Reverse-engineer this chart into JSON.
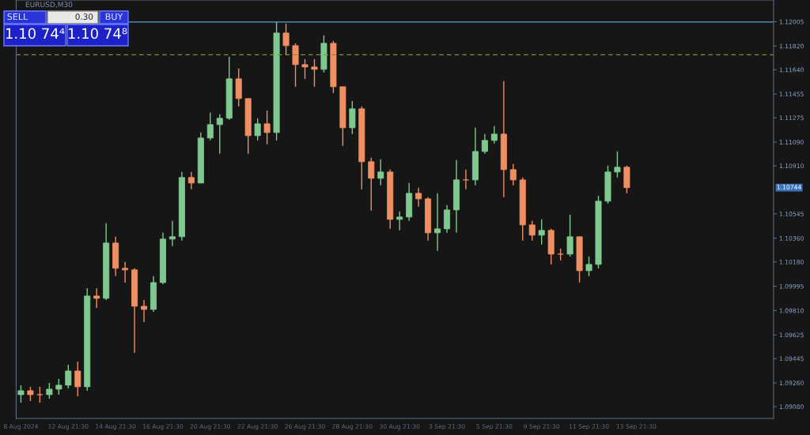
{
  "chart_data": {
    "type": "candlestick",
    "title": "EURUSD,M30",
    "categories": [
      "8 Aug 2024",
      null,
      null,
      null,
      null,
      "12 Aug 21:30",
      null,
      null,
      null,
      null,
      "14 Aug 21:30",
      null,
      null,
      null,
      null,
      "16 Aug 21:30",
      null,
      null,
      null,
      null,
      "20 Aug 21:30",
      null,
      null,
      null,
      null,
      "22 Aug 21:30",
      null,
      null,
      null,
      null,
      "26 Aug 21:30",
      null,
      null,
      null,
      null,
      "28 Aug 21:30",
      null,
      null,
      null,
      null,
      "30 Aug 21:30",
      null,
      null,
      null,
      null,
      "3 Sep 21:30",
      null,
      null,
      null,
      null,
      "5 Sep 21:30",
      null,
      null,
      null,
      null,
      "9 Sep 21:30",
      null,
      null,
      null,
      null,
      "11 Sep 21:30",
      null,
      null,
      null,
      null,
      "13 Sep 21:30",
      null,
      null,
      null,
      null,
      null,
      null,
      null,
      null,
      null,
      null,
      null,
      null,
      null,
      null
    ],
    "ohlc": [
      [
        1.09171,
        1.09243,
        1.09111,
        1.09201
      ],
      [
        1.09201,
        1.09231,
        1.09123,
        1.09171
      ],
      [
        1.09171,
        1.09231,
        1.09111,
        1.09171
      ],
      [
        1.09171,
        1.09261,
        1.09141,
        1.09213
      ],
      [
        1.09213,
        1.09291,
        1.09171,
        1.09243
      ],
      [
        1.09243,
        1.09399,
        1.09219,
        1.09351
      ],
      [
        1.09351,
        1.09423,
        1.09159,
        1.09231
      ],
      [
        1.09231,
        1.09981,
        1.09201,
        1.09921
      ],
      [
        1.09921,
        1.09981,
        1.09831,
        1.09903
      ],
      [
        1.09903,
        1.10473,
        1.09891,
        1.10323
      ],
      [
        1.10323,
        1.10371,
        1.10071,
        1.10131
      ],
      [
        1.10131,
        1.10179,
        1.10023,
        1.10119
      ],
      [
        1.10119,
        1.10131,
        1.09489,
        1.09843
      ],
      [
        1.09843,
        1.09891,
        1.09723,
        1.09819
      ],
      [
        1.09819,
        1.10071,
        1.09801,
        1.10023
      ],
      [
        1.10023,
        1.10401,
        1.10011,
        1.10353
      ],
      [
        1.10353,
        1.10491,
        1.10299,
        1.10371
      ],
      [
        1.10371,
        1.10863,
        1.10341,
        1.10821
      ],
      [
        1.10821,
        1.10863,
        1.10731,
        1.10779
      ],
      [
        1.10779,
        1.11163,
        1.10779,
        1.11121
      ],
      [
        1.11121,
        1.11313,
        1.11103,
        1.11223
      ],
      [
        1.11223,
        1.11301,
        1.11001,
        1.11271
      ],
      [
        1.11271,
        1.11739,
        1.11259,
        1.11571
      ],
      [
        1.11571,
        1.11649,
        1.11361,
        1.11421
      ],
      [
        1.11421,
        1.11421,
        1.11001,
        1.11139
      ],
      [
        1.11139,
        1.11271,
        1.11103,
        1.11229
      ],
      [
        1.11229,
        1.11331,
        1.11073,
        1.11163
      ],
      [
        1.11163,
        1.12003,
        1.11103,
        1.11919
      ],
      [
        1.11919,
        1.11991,
        1.11751,
        1.11823
      ],
      [
        1.11823,
        1.11841,
        1.11511,
        1.11679
      ],
      [
        1.11679,
        1.11721,
        1.11571,
        1.11661
      ],
      [
        1.11661,
        1.11721,
        1.11511,
        1.11643
      ],
      [
        1.11643,
        1.11901,
        1.11619,
        1.11841
      ],
      [
        1.11841,
        1.11859,
        1.11463,
        1.11511
      ],
      [
        1.11511,
        1.11511,
        1.11061,
        1.11199
      ],
      [
        1.11199,
        1.11403,
        1.11151,
        1.11343
      ],
      [
        1.11343,
        1.11361,
        1.10731,
        1.10941
      ],
      [
        1.10941,
        1.10971,
        1.10569,
        1.10815
      ],
      [
        1.10815,
        1.10959,
        1.10761,
        1.10863
      ],
      [
        1.10863,
        1.10881,
        1.10431,
        1.10503
      ],
      [
        1.10503,
        1.10563,
        1.10419,
        1.10521
      ],
      [
        1.10521,
        1.10779,
        1.10491,
        1.10701
      ],
      [
        1.10701,
        1.10743,
        1.10599,
        1.10659
      ],
      [
        1.10659,
        1.10671,
        1.10341,
        1.10401
      ],
      [
        1.10401,
        1.10701,
        1.10263,
        1.10431
      ],
      [
        1.10431,
        1.10611,
        1.10401,
        1.10575
      ],
      [
        1.10575,
        1.10953,
        1.10401,
        1.10803
      ],
      [
        1.10803,
        1.10881,
        1.10731,
        1.10803
      ],
      [
        1.10803,
        1.11199,
        1.10761,
        1.11019
      ],
      [
        1.11019,
        1.11151,
        1.11001,
        1.11103
      ],
      [
        1.11103,
        1.11211,
        1.11079,
        1.11151
      ],
      [
        1.11151,
        1.11553,
        1.10671,
        1.10881
      ],
      [
        1.10881,
        1.10923,
        1.10761,
        1.10803
      ],
      [
        1.10803,
        1.10821,
        1.10341,
        1.10461
      ],
      [
        1.10461,
        1.10491,
        1.10341,
        1.10383
      ],
      [
        1.10383,
        1.10503,
        1.10311,
        1.10419
      ],
      [
        1.10419,
        1.10431,
        1.10161,
        1.10239
      ],
      [
        1.10239,
        1.10281,
        1.10191,
        1.10239
      ],
      [
        1.10239,
        1.10539,
        1.10221,
        1.10371
      ],
      [
        1.10371,
        1.10371,
        1.10023,
        1.10113
      ],
      [
        1.10113,
        1.10221,
        1.10071,
        1.10161
      ],
      [
        1.10161,
        1.10683,
        1.10131,
        1.10641
      ],
      [
        1.10641,
        1.10911,
        1.10623,
        1.10863
      ],
      [
        1.10863,
        1.11019,
        1.10821,
        1.10899
      ],
      [
        1.10899,
        1.10911,
        1.10701,
        1.10744
      ],
      null,
      null,
      null,
      null,
      null,
      null,
      null,
      null,
      null,
      null,
      null,
      null,
      null,
      null,
      null
    ],
    "colors": [
      "#7fc98f",
      "#ef8f62",
      "#ef8f62",
      "#7fc98f",
      "#7fc98f",
      "#7fc98f",
      "#ef8f62",
      "#7fc98f",
      "#ef8f62",
      "#7fc98f",
      "#ef8f62",
      "#ef8f62",
      "#ef8f62",
      "#ef8f62",
      "#7fc98f",
      "#7fc98f",
      "#7fc98f",
      "#7fc98f",
      "#ef8f62",
      "#7fc98f",
      "#7fc98f",
      "#7fc98f",
      "#7fc98f",
      "#ef8f62",
      "#ef8f62",
      "#7fc98f",
      "#ef8f62",
      "#7fc98f",
      "#ef8f62",
      "#ef8f62",
      "#ef8f62",
      "#ef8f62",
      "#7fc98f",
      "#ef8f62",
      "#ef8f62",
      "#7fc98f",
      "#ef8f62",
      "#ef8f62",
      "#7fc98f",
      "#ef8f62",
      "#7fc98f",
      "#7fc98f",
      "#ef8f62",
      "#ef8f62",
      "#7fc98f",
      "#7fc98f",
      "#7fc98f",
      "#ef8f62",
      "#7fc98f",
      "#7fc98f",
      "#7fc98f",
      "#ef8f62",
      "#ef8f62",
      "#ef8f62",
      "#ef8f62",
      "#7fc98f",
      "#ef8f62",
      "#ef8f62",
      "#7fc98f",
      "#ef8f62",
      "#7fc98f",
      "#7fc98f",
      "#7fc98f",
      "#7fc98f",
      "#ef8f62",
      null,
      null,
      null,
      null,
      null,
      null,
      null,
      null,
      null,
      null,
      null,
      null,
      null,
      null,
      null
    ],
    "ylim": [
      1.0899,
      1.1217
    ],
    "yticks": [
      1.12005,
      {
        "value": 1.1182,
        "label": "1.11820"
      },
      {
        "value": 1.1164,
        "label": "1.11640"
      },
      1.11455,
      1.11275,
      {
        "value": 1.1109,
        "label": "1.11090"
      },
      {
        "value": 1.1091,
        "label": "1.10910"
      },
      1.10545,
      {
        "value": 1.1036,
        "label": "1.10360"
      },
      {
        "value": 1.1018,
        "label": "1.10180"
      },
      1.09995,
      {
        "value": 1.0981,
        "label": "1.09810"
      },
      1.09625,
      1.09445,
      {
        "value": 1.0926,
        "label": "1.09260"
      },
      {
        "value": 1.0908,
        "label": "1.09080"
      }
    ],
    "ref_lines": [
      {
        "axis": "y",
        "value": 1.12003,
        "color": "#5b9bd5",
        "line_style": "solid"
      },
      {
        "axis": "y",
        "value": 1.11754,
        "color": "#8a8a3a",
        "line_style": "dashed"
      }
    ],
    "annotations": [
      "SELL",
      "0.30",
      "BUY",
      "1.10 74⁴",
      "1.10 74⁸",
      "1.10744"
    ],
    "grid": false
  }
}
